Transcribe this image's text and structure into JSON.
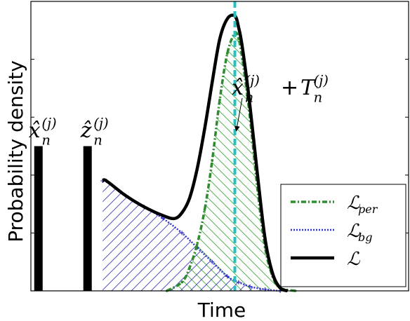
{
  "chart_data": {
    "type": "line",
    "xlabel": "Time",
    "ylabel": "Probability density",
    "x_range": [
      0,
      100
    ],
    "y_range": [
      0,
      1
    ],
    "xticks": "unlabeled",
    "yticks": "unlabeled",
    "grid": false,
    "legend_position": "bottom-right",
    "series": [
      {
        "name": "ℒper",
        "color": "#2e8b2e",
        "style": "dash-dot with point markers",
        "x": [
          36,
          40,
          42,
          44,
          46,
          48,
          50,
          52,
          54,
          55,
          56,
          58,
          60,
          62,
          64,
          66,
          70
        ],
        "y": [
          0.0,
          0.03,
          0.08,
          0.16,
          0.28,
          0.45,
          0.66,
          0.82,
          0.89,
          0.87,
          0.8,
          0.6,
          0.35,
          0.15,
          0.05,
          0.01,
          0.0
        ]
      },
      {
        "name": "ℒbg",
        "color": "#3333cc",
        "style": "dotted with plus markers",
        "x": [
          19,
          20,
          25,
          30,
          35,
          40,
          44,
          48,
          52,
          55,
          58,
          62,
          66
        ],
        "y": [
          0.38,
          0.38,
          0.33,
          0.29,
          0.25,
          0.2,
          0.15,
          0.1,
          0.05,
          0.03,
          0.015,
          0.005,
          0.0
        ]
      },
      {
        "name": "ℒ",
        "color": "#000000",
        "style": "solid thick",
        "x": [
          19,
          20,
          25,
          30,
          35,
          38,
          40,
          42,
          44,
          46,
          48,
          50,
          52,
          54,
          55,
          56,
          58,
          60,
          62,
          64,
          66,
          68
        ],
        "y": [
          0.38,
          0.38,
          0.33,
          0.29,
          0.26,
          0.25,
          0.27,
          0.32,
          0.42,
          0.56,
          0.72,
          0.87,
          0.94,
          0.95,
          0.91,
          0.84,
          0.64,
          0.4,
          0.18,
          0.06,
          0.01,
          0.0
        ]
      }
    ],
    "impulses": [
      {
        "x": 2,
        "height": 0.5,
        "label": "x̂n(j)"
      },
      {
        "x": 15,
        "height": 0.5,
        "label": "ẑn(j)"
      }
    ],
    "vertical_marker": {
      "x": 54,
      "color": "#22c2c2",
      "style": "dashed"
    },
    "annotation": {
      "text": "x̂n(j) + Tn(j)",
      "points_to_x": 54,
      "points_to_y": 0.55
    },
    "hatched_regions": [
      {
        "series": "ℒper",
        "color": "#44aa44"
      },
      {
        "series": "ℒbg",
        "color": "#4444bb"
      }
    ]
  }
}
